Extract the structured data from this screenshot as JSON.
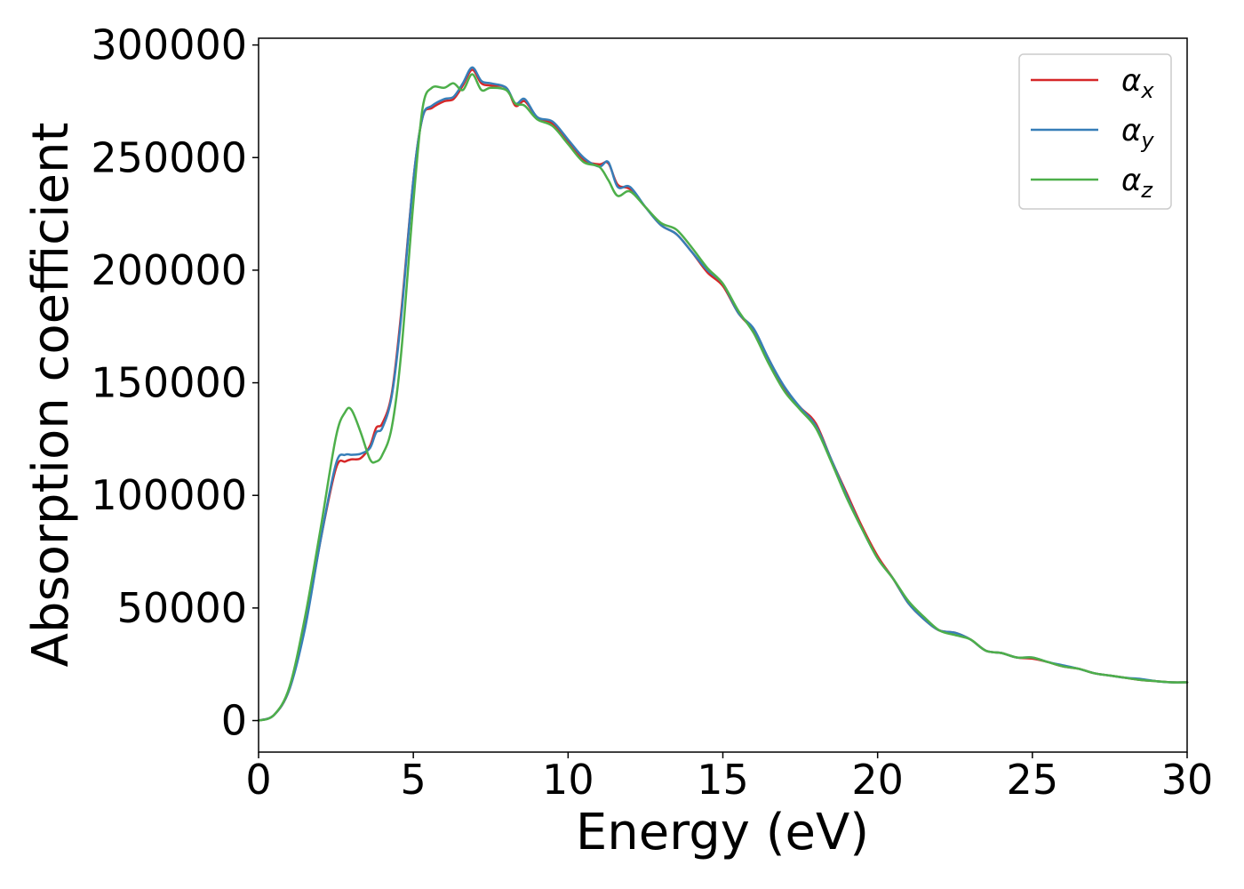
{
  "chart_data": {
    "type": "line",
    "xlabel": "Energy (eV)",
    "ylabel": "Absorption coefficient",
    "xlim": [
      0,
      30
    ],
    "ylim": [
      -14000,
      303000
    ],
    "xticks": [
      "0",
      "5",
      "10",
      "15",
      "20",
      "25",
      "30"
    ],
    "yticks": [
      "0",
      "50000",
      "100000",
      "150000",
      "200000",
      "250000",
      "300000"
    ],
    "grid": false,
    "legend_position": "top-right",
    "x": [
      0.0,
      0.5,
      1.0,
      1.5,
      2.0,
      2.5,
      2.8,
      3.0,
      3.3,
      3.6,
      3.8,
      4.0,
      4.3,
      4.6,
      5.0,
      5.3,
      5.6,
      6.0,
      6.3,
      6.6,
      6.9,
      7.2,
      7.5,
      8.0,
      8.3,
      8.6,
      9.0,
      9.5,
      10.0,
      10.5,
      11.0,
      11.3,
      11.6,
      12.0,
      12.5,
      13.0,
      13.5,
      14.0,
      14.5,
      15.0,
      15.5,
      16.0,
      16.5,
      17.0,
      17.5,
      18.0,
      18.5,
      19.0,
      19.5,
      20.0,
      20.5,
      21.0,
      21.5,
      22.0,
      22.5,
      23.0,
      23.5,
      24.0,
      24.5,
      25.0,
      25.5,
      26.0,
      26.5,
      27.0,
      27.5,
      28.0,
      28.5,
      29.0,
      29.5,
      30.0
    ],
    "series": [
      {
        "name": "αx",
        "legend_main": "α",
        "legend_sub": "x",
        "color": "#d62728",
        "values": [
          0,
          2500,
          14000,
          42000,
          80000,
          112000,
          115000,
          116000,
          116500,
          122000,
          130000,
          132000,
          145000,
          180000,
          240000,
          268000,
          272000,
          275000,
          276000,
          282000,
          289000,
          283000,
          282000,
          281000,
          273000,
          275000,
          268000,
          265000,
          257000,
          249000,
          247000,
          247500,
          238000,
          236000,
          228000,
          220000,
          216000,
          208000,
          199000,
          193000,
          181000,
          173000,
          160000,
          147000,
          139000,
          132000,
          116000,
          101000,
          86000,
          73000,
          63000,
          52000,
          45000,
          40000,
          39000,
          36000,
          31000,
          30000,
          28000,
          27500,
          26000,
          24000,
          23000,
          21000,
          20000,
          19000,
          18000,
          17500,
          17000,
          17000
        ]
      },
      {
        "name": "αy",
        "legend_main": "α",
        "legend_sub": "y",
        "color": "#377eb8",
        "values": [
          0,
          2500,
          14000,
          41000,
          80000,
          114000,
          118000,
          118000,
          118500,
          121000,
          128000,
          130000,
          144000,
          178000,
          240000,
          268000,
          273000,
          276000,
          277000,
          283000,
          290000,
          284000,
          283000,
          281000,
          274000,
          276000,
          268000,
          266000,
          258000,
          250000,
          246000,
          248000,
          237000,
          237000,
          228000,
          220000,
          216000,
          208000,
          200000,
          194000,
          181000,
          174000,
          160000,
          148000,
          139000,
          131000,
          116000,
          100000,
          85000,
          72000,
          63000,
          52000,
          45000,
          40000,
          39000,
          36000,
          31000,
          30000,
          28000,
          28000,
          26000,
          24500,
          23000,
          21000,
          20000,
          19000,
          18500,
          17500,
          17000,
          17000
        ]
      },
      {
        "name": "αz",
        "legend_main": "α",
        "legend_sub": "z",
        "color": "#4daf4a",
        "values": [
          0,
          2500,
          15000,
          46000,
          85000,
          126000,
          137000,
          138000,
          128000,
          116000,
          115000,
          118000,
          130000,
          162000,
          230000,
          272000,
          281000,
          281000,
          283000,
          280000,
          287000,
          280000,
          281000,
          280000,
          274000,
          273000,
          267000,
          264000,
          256000,
          248000,
          246000,
          240000,
          233000,
          235000,
          228000,
          221000,
          218000,
          210000,
          201000,
          194000,
          182000,
          172000,
          158000,
          146000,
          138000,
          130000,
          115000,
          99000,
          85000,
          72000,
          63000,
          53000,
          46000,
          40000,
          38000,
          36000,
          31000,
          30000,
          28000,
          28000,
          26000,
          24000,
          23000,
          21000,
          20000,
          19000,
          18000,
          17500,
          17000,
          17000
        ]
      }
    ]
  }
}
